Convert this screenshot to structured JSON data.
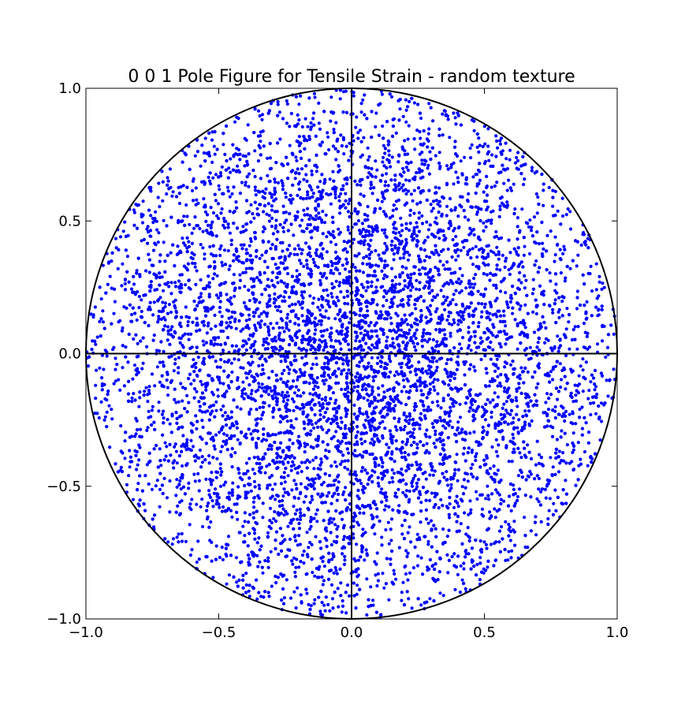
{
  "chart_data": {
    "type": "scatter",
    "title": "0 0 1 Pole Figure for Tensile Strain - random texture",
    "xlabel": "",
    "ylabel": "",
    "xlim": [
      -1.0,
      1.0
    ],
    "ylim": [
      -1.0,
      1.0
    ],
    "xticks": [
      -1.0,
      -0.5,
      0.0,
      0.5,
      1.0
    ],
    "yticks": [
      -1.0,
      -0.5,
      0.0,
      0.5,
      1.0
    ],
    "x_tick_labels": [
      "−1.0",
      "−0.5",
      "0.0",
      "0.5",
      "1.0"
    ],
    "y_tick_labels": [
      "−1.0",
      "−0.5",
      "0.0",
      "0.5",
      "1.0"
    ],
    "grid": false,
    "legend": "none",
    "point_color": "#0000ff",
    "guide_color": "#000000",
    "reference_circle": {
      "center": [
        0.0,
        0.0
      ],
      "radius": 1.0
    },
    "reference_lines": [
      {
        "from": [
          -1.0,
          0.0
        ],
        "to": [
          1.0,
          0.0
        ]
      },
      {
        "from": [
          0.0,
          -1.0
        ],
        "to": [
          0.0,
          1.0
        ]
      }
    ],
    "distribution": "random points inside the unit circle (stereographic projection of random orientations), approx. 9000 points",
    "approx_point_count": 9000
  }
}
